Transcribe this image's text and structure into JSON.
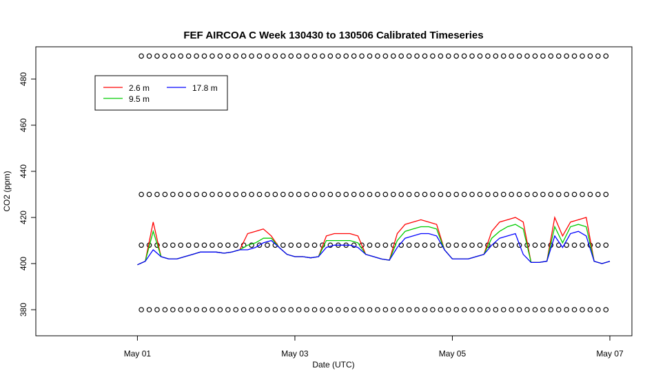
{
  "chart_data": {
    "type": "line",
    "title": "FEF AIRCOA C  Week 130430 to 130506  Calibrated Timeseries",
    "x_label": "Date (UTC)",
    "y_label": "CO2 (ppm)",
    "x": [
      1.0,
      1.1,
      1.2,
      1.3,
      1.4,
      1.5,
      1.6,
      1.7,
      1.8,
      1.9,
      2.0,
      2.1,
      2.2,
      2.3,
      2.4,
      2.5,
      2.6,
      2.7,
      2.8,
      2.9,
      3.0,
      3.1,
      3.2,
      3.3,
      3.4,
      3.5,
      3.6,
      3.7,
      3.8,
      3.9,
      4.0,
      4.1,
      4.2,
      4.3,
      4.4,
      4.5,
      4.6,
      4.7,
      4.8,
      4.9,
      5.0,
      5.1,
      5.2,
      5.3,
      5.4,
      5.5,
      5.6,
      5.7,
      5.8,
      5.9,
      6.0,
      6.1,
      6.2,
      6.3,
      6.4,
      6.5,
      6.6,
      6.7,
      6.8,
      6.9,
      7.0
    ],
    "series": [
      {
        "name": "2.6 m",
        "color": "#ff0000",
        "values": [
          399.5,
          401,
          418,
          403,
          402,
          402,
          403,
          404,
          405,
          405,
          405,
          404.5,
          405,
          406,
          413,
          414,
          415,
          412,
          407,
          404,
          403,
          403,
          402.5,
          403,
          412,
          413,
          413,
          413,
          412,
          404,
          403,
          402,
          401.5,
          413,
          417,
          418,
          419,
          418,
          417,
          406,
          402,
          402,
          402,
          403,
          404,
          414,
          418,
          419,
          420,
          418,
          400.5,
          400.5,
          401,
          420,
          412,
          418,
          419,
          420,
          401,
          400,
          401
        ]
      },
      {
        "name": "9.5 m",
        "color": "#00cc00",
        "values": [
          399.5,
          401,
          414,
          403,
          402,
          402,
          403,
          404,
          405,
          405,
          405,
          404.5,
          405,
          406,
          408,
          409,
          411,
          411,
          407,
          404,
          403,
          403,
          402.5,
          403,
          410,
          410,
          410,
          410,
          409,
          404,
          403,
          402,
          401.5,
          410,
          414,
          415,
          416,
          416,
          415,
          406,
          402,
          402,
          402,
          403,
          404,
          411,
          414,
          416,
          417,
          415,
          400.5,
          400.5,
          401,
          416,
          409,
          416,
          417,
          416,
          401,
          400,
          401
        ]
      },
      {
        "name": "17.8 m",
        "color": "#0000ff",
        "values": [
          399.5,
          401,
          406,
          403,
          402,
          402,
          403,
          404,
          405,
          405,
          405,
          404.5,
          405,
          406,
          406,
          407,
          409,
          410,
          407,
          404,
          403,
          403,
          402.5,
          403,
          407,
          408,
          408,
          408,
          407,
          404,
          403,
          402,
          401.5,
          407,
          411,
          412,
          413,
          413,
          412,
          406,
          402,
          402,
          402,
          403,
          404,
          408,
          411,
          412,
          413,
          404,
          400.5,
          400.5,
          401,
          412,
          407,
          413,
          414,
          412,
          401,
          400,
          401
        ]
      }
    ],
    "calibration_x": [
      1.05,
      1.15,
      1.25,
      1.35,
      1.45,
      1.55,
      1.65,
      1.75,
      1.85,
      1.95,
      2.05,
      2.15,
      2.25,
      2.35,
      2.45,
      2.55,
      2.65,
      2.75,
      2.85,
      2.95,
      3.05,
      3.15,
      3.25,
      3.35,
      3.45,
      3.55,
      3.65,
      3.75,
      3.85,
      3.95,
      4.05,
      4.15,
      4.25,
      4.35,
      4.45,
      4.55,
      4.65,
      4.75,
      4.85,
      4.95,
      5.05,
      5.15,
      5.25,
      5.35,
      5.45,
      5.55,
      5.65,
      5.75,
      5.85,
      5.95,
      6.05,
      6.15,
      6.25,
      6.35,
      6.45,
      6.55,
      6.65,
      6.75,
      6.85,
      6.95
    ],
    "calibration_levels": [
      490,
      430,
      408,
      380
    ],
    "xlim": [
      -0.29,
      7.28
    ],
    "xticks": [
      {
        "value": 1,
        "label": "May 01"
      },
      {
        "value": 3,
        "label": "May 03"
      },
      {
        "value": 5,
        "label": "May 05"
      },
      {
        "value": 7,
        "label": "May 07"
      }
    ],
    "ylim": [
      368.7,
      494
    ],
    "yticks": [
      380,
      400,
      420,
      440,
      460,
      480
    ],
    "legend": "top-left"
  }
}
